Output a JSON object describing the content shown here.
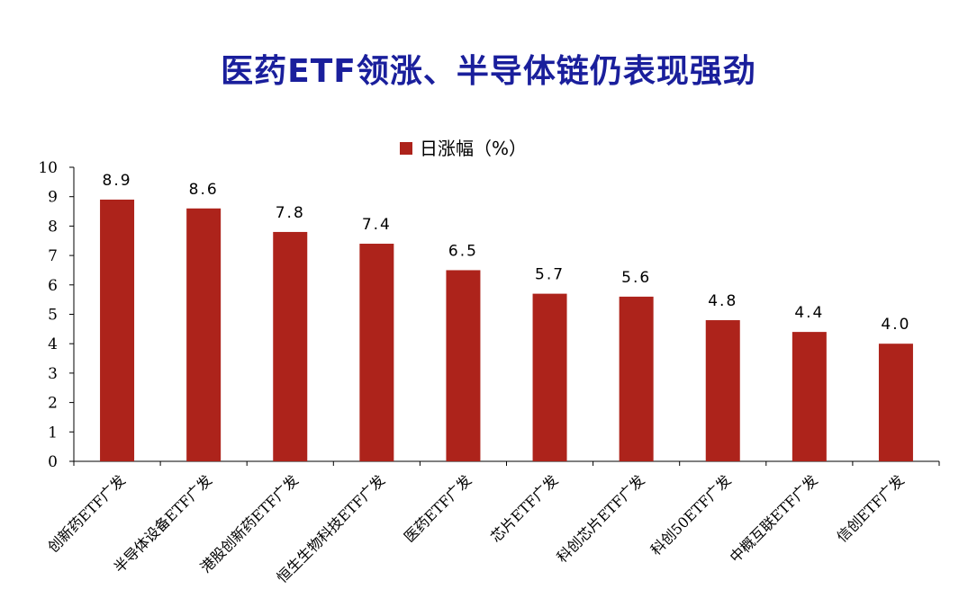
{
  "title": "医药ETF领涨、半导体链仍表现强劲",
  "colors": {
    "title": "#1a1f9c",
    "bar": "#ad231b",
    "axis": "#000000"
  },
  "chart_data": {
    "type": "bar",
    "legend": {
      "label": "日涨幅（%）",
      "position": "top-center"
    },
    "categories": [
      "创新药ETF广发",
      "半导体设备ETF广发",
      "港股创新药ETF广发",
      "恒生生物科技ETF广发",
      "医药ETF广发",
      "芯片ETF广发",
      "科创芯片ETF广发",
      "科创50ETF广发",
      "中概互联ETF广发",
      "信创ETF广发"
    ],
    "values": [
      8.9,
      8.6,
      7.8,
      7.4,
      6.5,
      5.7,
      5.6,
      4.8,
      4.4,
      4.0
    ],
    "data_labels": [
      "8.9",
      "8.6",
      "7.8",
      "7.4",
      "6.5",
      "5.7",
      "5.6",
      "4.8",
      "4.4",
      "4.0"
    ],
    "ylim": [
      0,
      10
    ],
    "yticks": [
      "0",
      "1",
      "2",
      "3",
      "4",
      "5",
      "6",
      "7",
      "8",
      "9",
      "10"
    ],
    "grid": false
  }
}
